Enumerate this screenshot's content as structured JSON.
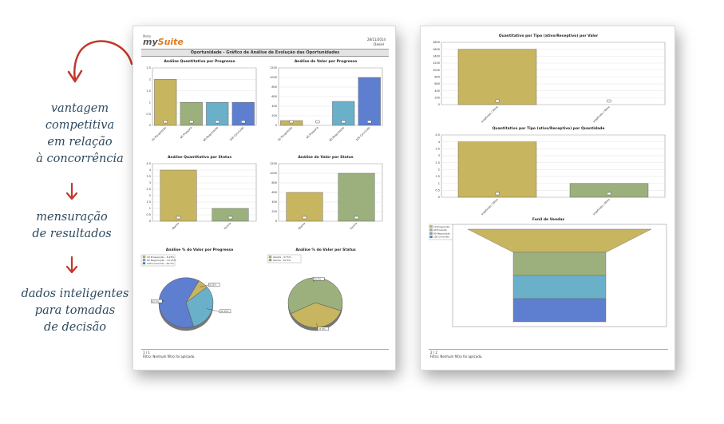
{
  "annotations": {
    "item1": [
      "vantagem",
      "competitiva",
      "em relação",
      "à concorrência"
    ],
    "item2": [
      "mensuração",
      "de resultados"
    ],
    "item3": [
      "dados inteligentes",
      "para tomadas",
      "de decisão"
    ]
  },
  "colors": {
    "arrow": "#c0392b",
    "text": "#2e4a5e",
    "yellow": "#c8b560",
    "green": "#9bb07c",
    "blue": "#6ab0c9",
    "dark_blue": "#5e7fcf"
  },
  "page1": {
    "logo_small": "Meta",
    "logo_my": "my",
    "logo_suite": "Suite",
    "date": "28/11/2014",
    "user": "Daniel",
    "header": "Oportunidade - Gráfico de Análise de Evolução das Oportunidades",
    "footer_page": "1 / 1",
    "footer_filter": "Filtro: Nenhum filtro foi aplicado."
  },
  "page2": {
    "footer_page": "2 / 2",
    "footer_filter": "Filtro: Nenhum filtro foi aplicado."
  },
  "chart_data": [
    {
      "type": "bar",
      "title": "Análise Quantitativa por Progresso",
      "categories": [
        "10 Prospecção",
        "40 Proposta",
        "80 Negociação",
        "100 Concluído"
      ],
      "values": [
        2,
        1,
        1,
        1
      ],
      "ylim": [
        0,
        2.5
      ],
      "ticks": [
        "0",
        "0.5",
        "1",
        "1.5",
        "2",
        "2.5"
      ]
    },
    {
      "type": "bar",
      "title": "Análise do Valor por Progresso",
      "categories": [
        "10 Prospecção",
        "40 Proposta",
        "80 Negociação",
        "100 Concluído"
      ],
      "values": [
        100,
        0,
        500,
        1000
      ],
      "ylim": [
        0,
        1200
      ],
      "ticks": [
        "0",
        "200",
        "400",
        "600",
        "800",
        "1000",
        "1200"
      ]
    },
    {
      "type": "bar",
      "title": "Análise Quantitativa por Status",
      "categories": [
        "Aberta",
        "Ganha"
      ],
      "values": [
        4,
        1
      ],
      "ylim": [
        0,
        4.5
      ],
      "ticks": [
        "0",
        "0.5",
        "1",
        "1.5",
        "2",
        "2.5",
        "3",
        "3.5",
        "4",
        "4.5"
      ]
    },
    {
      "type": "bar",
      "title": "Análise do Valor por Status",
      "categories": [
        "Aberta",
        "Ganha"
      ],
      "values": [
        600,
        1000
      ],
      "ylim": [
        0,
        1200
      ],
      "ticks": [
        "0",
        "200",
        "400",
        "600",
        "800",
        "1000",
        "1200"
      ]
    },
    {
      "type": "pie",
      "title": "Análise % do Valor por Progresso",
      "labels": [
        "10 Prospecção",
        "80 Negociação",
        "100 Concluído"
      ],
      "values": [
        6.25,
        31.25,
        62.5
      ]
    },
    {
      "type": "pie",
      "title": "Análise % do Valor por Status",
      "labels": [
        "Aberta",
        "Ganha"
      ],
      "values": [
        37.5,
        62.5
      ]
    },
    {
      "type": "bar",
      "title": "Quantitativo por Tipo (ativo/Receptivo) por Valor",
      "categories": [
        "Indefinido / Ativo",
        "Indefinido / Ativo"
      ],
      "values": [
        1600,
        0
      ],
      "ylim": [
        0,
        1800
      ],
      "ticks": [
        "0",
        "200",
        "400",
        "600",
        "800",
        "1000",
        "1200",
        "1400",
        "1600",
        "1800"
      ]
    },
    {
      "type": "bar",
      "title": "Quantitativo por Tipo (ativo/Receptivo) por Quantidade",
      "categories": [
        "Indefinido / Ativo",
        "Indefinido / Ativo"
      ],
      "values": [
        4,
        1
      ],
      "ylim": [
        0,
        4.5
      ],
      "ticks": [
        "0",
        "0.5",
        "1",
        "1.5",
        "2",
        "2.5",
        "3",
        "3.5",
        "4",
        "4.5"
      ]
    },
    {
      "type": "funnel",
      "title": "Funil de Vendas",
      "labels": [
        "10 Prospecção",
        "40 Proposta",
        "80 Negociação",
        "100 Concluído"
      ],
      "values": [
        1,
        1,
        1,
        1
      ]
    }
  ]
}
